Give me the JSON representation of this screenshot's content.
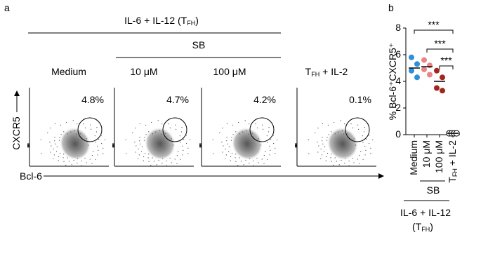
{
  "panel_a": {
    "label": "a",
    "header": "IL-6 + IL-12 (TFH)",
    "sub_header": "SB",
    "panels": [
      {
        "title": "Medium",
        "percent": "4.8%"
      },
      {
        "title": "10 μM",
        "percent": "4.7%"
      },
      {
        "title": "100 μM",
        "percent": "4.2%"
      },
      {
        "title": "TFH + IL-2",
        "percent": "0.1%"
      }
    ],
    "y_label": "CXCR5",
    "x_label": "Bcl-6"
  },
  "chart_data": {
    "type": "dot",
    "label": "b",
    "y_label": "% Bcl-6⁺CXCR5⁺",
    "categories": [
      "Medium",
      "10 μM",
      "100 μM",
      "TFH + IL-2"
    ],
    "points": [
      [
        5.8,
        5.3,
        4.8,
        4.3
      ],
      [
        5.6,
        5.2,
        4.9,
        4.5
      ],
      [
        4.8,
        4.3,
        3.5,
        3.3
      ],
      [
        0.1,
        0.1,
        0.1,
        0.1
      ]
    ],
    "means": [
      5.0,
      5.1,
      4.0,
      0.1
    ],
    "colors": [
      "#2f8fd6",
      "#e88585",
      "#a3261c",
      "#ffffff"
    ],
    "significance": [
      "***",
      "***",
      "***"
    ],
    "group_labels": [
      "SB",
      "IL-6 + IL-12 (TFH)"
    ],
    "ylim": [
      0,
      8
    ],
    "yticks": [
      0,
      2,
      4,
      6,
      8
    ]
  }
}
